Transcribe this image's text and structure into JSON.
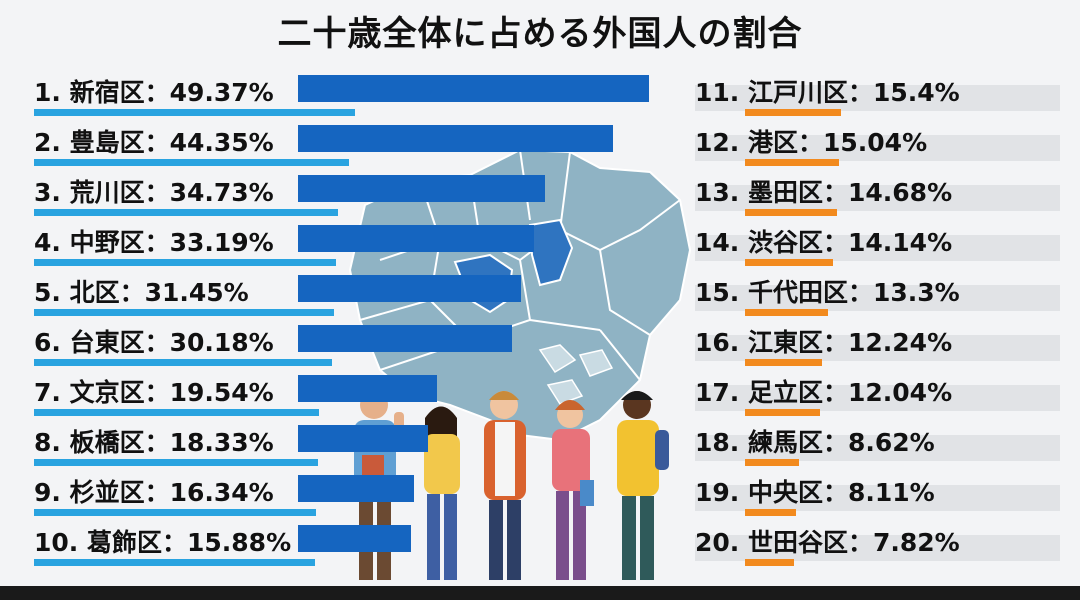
{
  "chart_data": {
    "type": "bar",
    "title": "二十歳全体に占める外国人の割合",
    "unit": "%",
    "xlim": [
      0,
      50
    ],
    "items": [
      {
        "rank": "1.",
        "ward": "新宿区",
        "value": 49.37,
        "label": "49.37%"
      },
      {
        "rank": "2.",
        "ward": "豊島区",
        "value": 44.35,
        "label": "44.35%"
      },
      {
        "rank": "3.",
        "ward": "荒川区",
        "value": 34.73,
        "label": "34.73%"
      },
      {
        "rank": "4.",
        "ward": "中野区",
        "value": 33.19,
        "label": "33.19%"
      },
      {
        "rank": "5.",
        "ward": "北区",
        "value": 31.45,
        "label": "31.45%"
      },
      {
        "rank": "6.",
        "ward": "台東区",
        "value": 30.18,
        "label": "30.18%"
      },
      {
        "rank": "7.",
        "ward": "文京区",
        "value": 19.54,
        "label": "19.54%"
      },
      {
        "rank": "8.",
        "ward": "板橋区",
        "value": 18.33,
        "label": "18.33%"
      },
      {
        "rank": "9.",
        "ward": "杉並区",
        "value": 16.34,
        "label": "16.34%"
      },
      {
        "rank": "10.",
        "ward": "葛飾区",
        "value": 15.88,
        "label": "15.88%"
      },
      {
        "rank": "11.",
        "ward": "江戸川区",
        "value": 15.4,
        "label": "15.4%"
      },
      {
        "rank": "12.",
        "ward": "港区",
        "value": 15.04,
        "label": "15.04%"
      },
      {
        "rank": "13.",
        "ward": "墨田区",
        "value": 14.68,
        "label": "14.68%"
      },
      {
        "rank": "14.",
        "ward": "渋谷区",
        "value": 14.14,
        "label": "14.14%"
      },
      {
        "rank": "15.",
        "ward": "千代田区",
        "value": 13.3,
        "label": "13.3%"
      },
      {
        "rank": "16.",
        "ward": "江東区",
        "value": 12.24,
        "label": "12.24%"
      },
      {
        "rank": "17.",
        "ward": "足立区",
        "value": 12.04,
        "label": "12.04%"
      },
      {
        "rank": "18.",
        "ward": "練馬区",
        "value": 8.62,
        "label": "8.62%"
      },
      {
        "rank": "19.",
        "ward": "中央区",
        "value": 8.11,
        "label": "8.11%"
      },
      {
        "rank": "20.",
        "ward": "世田谷区",
        "value": 7.82,
        "label": "7.82%"
      }
    ]
  },
  "colors": {
    "top_bar": "#1565c0",
    "top_underline": "#29a3e0",
    "low_bar": "#f28a1e",
    "track": "#e1e3e6",
    "map_fill": "#8fb3c4",
    "map_highlight": "#2f74c0"
  }
}
